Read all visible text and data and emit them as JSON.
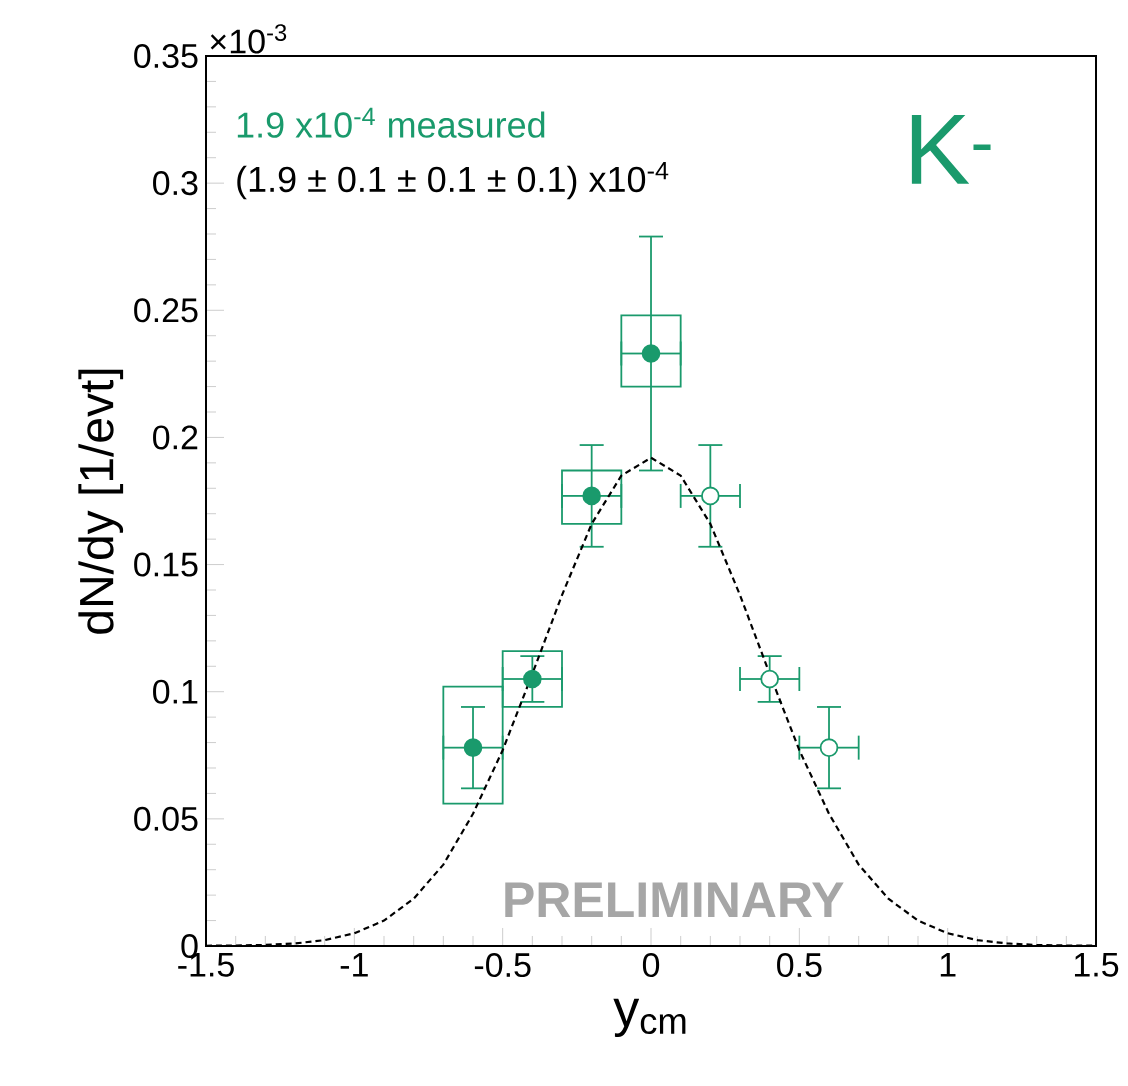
{
  "chart_data": {
    "type": "scatter",
    "xlabel": "y$_{cm}$",
    "ylabel": "dN/dy [1/evt]",
    "annotations": [
      "×10$^{-3}$",
      "1.9 x10$^{-4}$ measured",
      "(1.9 ± 0.1 ± 0.1 ± 0.1) x10$^{-4}$",
      "K$^{-}$",
      "PRELIMINARY"
    ],
    "xlim": [
      -1.5,
      1.5
    ],
    "xticks": [
      -1.5,
      -1,
      -0.5,
      0,
      0.5,
      1,
      1.5
    ],
    "ylim": [
      0,
      0.35
    ],
    "yticks": [
      0,
      0.05,
      0.1,
      0.15,
      0.2,
      0.25,
      0.3,
      0.35
    ],
    "series": [
      {
        "type": "bar",
        "color": "#1a9a6c",
        "x": [
          -0.6,
          -0.4,
          -0.2,
          0
        ],
        "base": [
          0.056,
          0.094,
          0.166,
          0.22
        ],
        "values": [
          0.046,
          0.022,
          0.021,
          0.028
        ]
      },
      {
        "marker": "circle",
        "color": "#1a9a6c",
        "x": [
          -0.6,
          -0.4,
          -0.2,
          0
        ],
        "values": [
          0.078,
          0.105,
          0.177,
          0.233
        ],
        "errors": [
          0.016,
          0.009,
          0.02,
          0.046
        ],
        "xerrors": [
          0.1,
          0.1,
          0.1,
          0.1
        ]
      },
      {
        "marker": "circle",
        "colors": [
          "#ffffff",
          "#ffffff",
          "#ffffff"
        ],
        "color": "#1a9a6c",
        "x": [
          0.2,
          0.4,
          0.6
        ],
        "values": [
          0.177,
          0.105,
          0.078
        ],
        "errors": [
          0.02,
          0.009,
          0.016
        ],
        "xerrors": [
          0.1,
          0.1,
          0.1
        ]
      },
      {
        "type": "line",
        "line_style": "dashed",
        "marker": "none",
        "color": "#000000",
        "x": [
          -1.5,
          -1.4,
          -1.3,
          -1.2,
          -1.1,
          -1,
          -0.9,
          -0.8,
          -0.7,
          -0.6,
          -0.5,
          -0.4,
          -0.3,
          -0.2,
          -0.1,
          0,
          0.1,
          0.2,
          0.3,
          0.4,
          0.5,
          0.6,
          0.7,
          0.8,
          0.9,
          1,
          1.1,
          1.2,
          1.3,
          1.4,
          1.5
        ],
        "values": [
          0.0001,
          0.0002,
          0.0004,
          0.001,
          0.0023,
          0.005,
          0.01,
          0.0186,
          0.032,
          0.052,
          0.077,
          0.107,
          0.138,
          0.166,
          0.185,
          0.192,
          0.185,
          0.166,
          0.138,
          0.107,
          0.077,
          0.052,
          0.032,
          0.0186,
          0.01,
          0.005,
          0.0023,
          0.001,
          0.0004,
          0.0002,
          0.0001
        ]
      }
    ]
  }
}
